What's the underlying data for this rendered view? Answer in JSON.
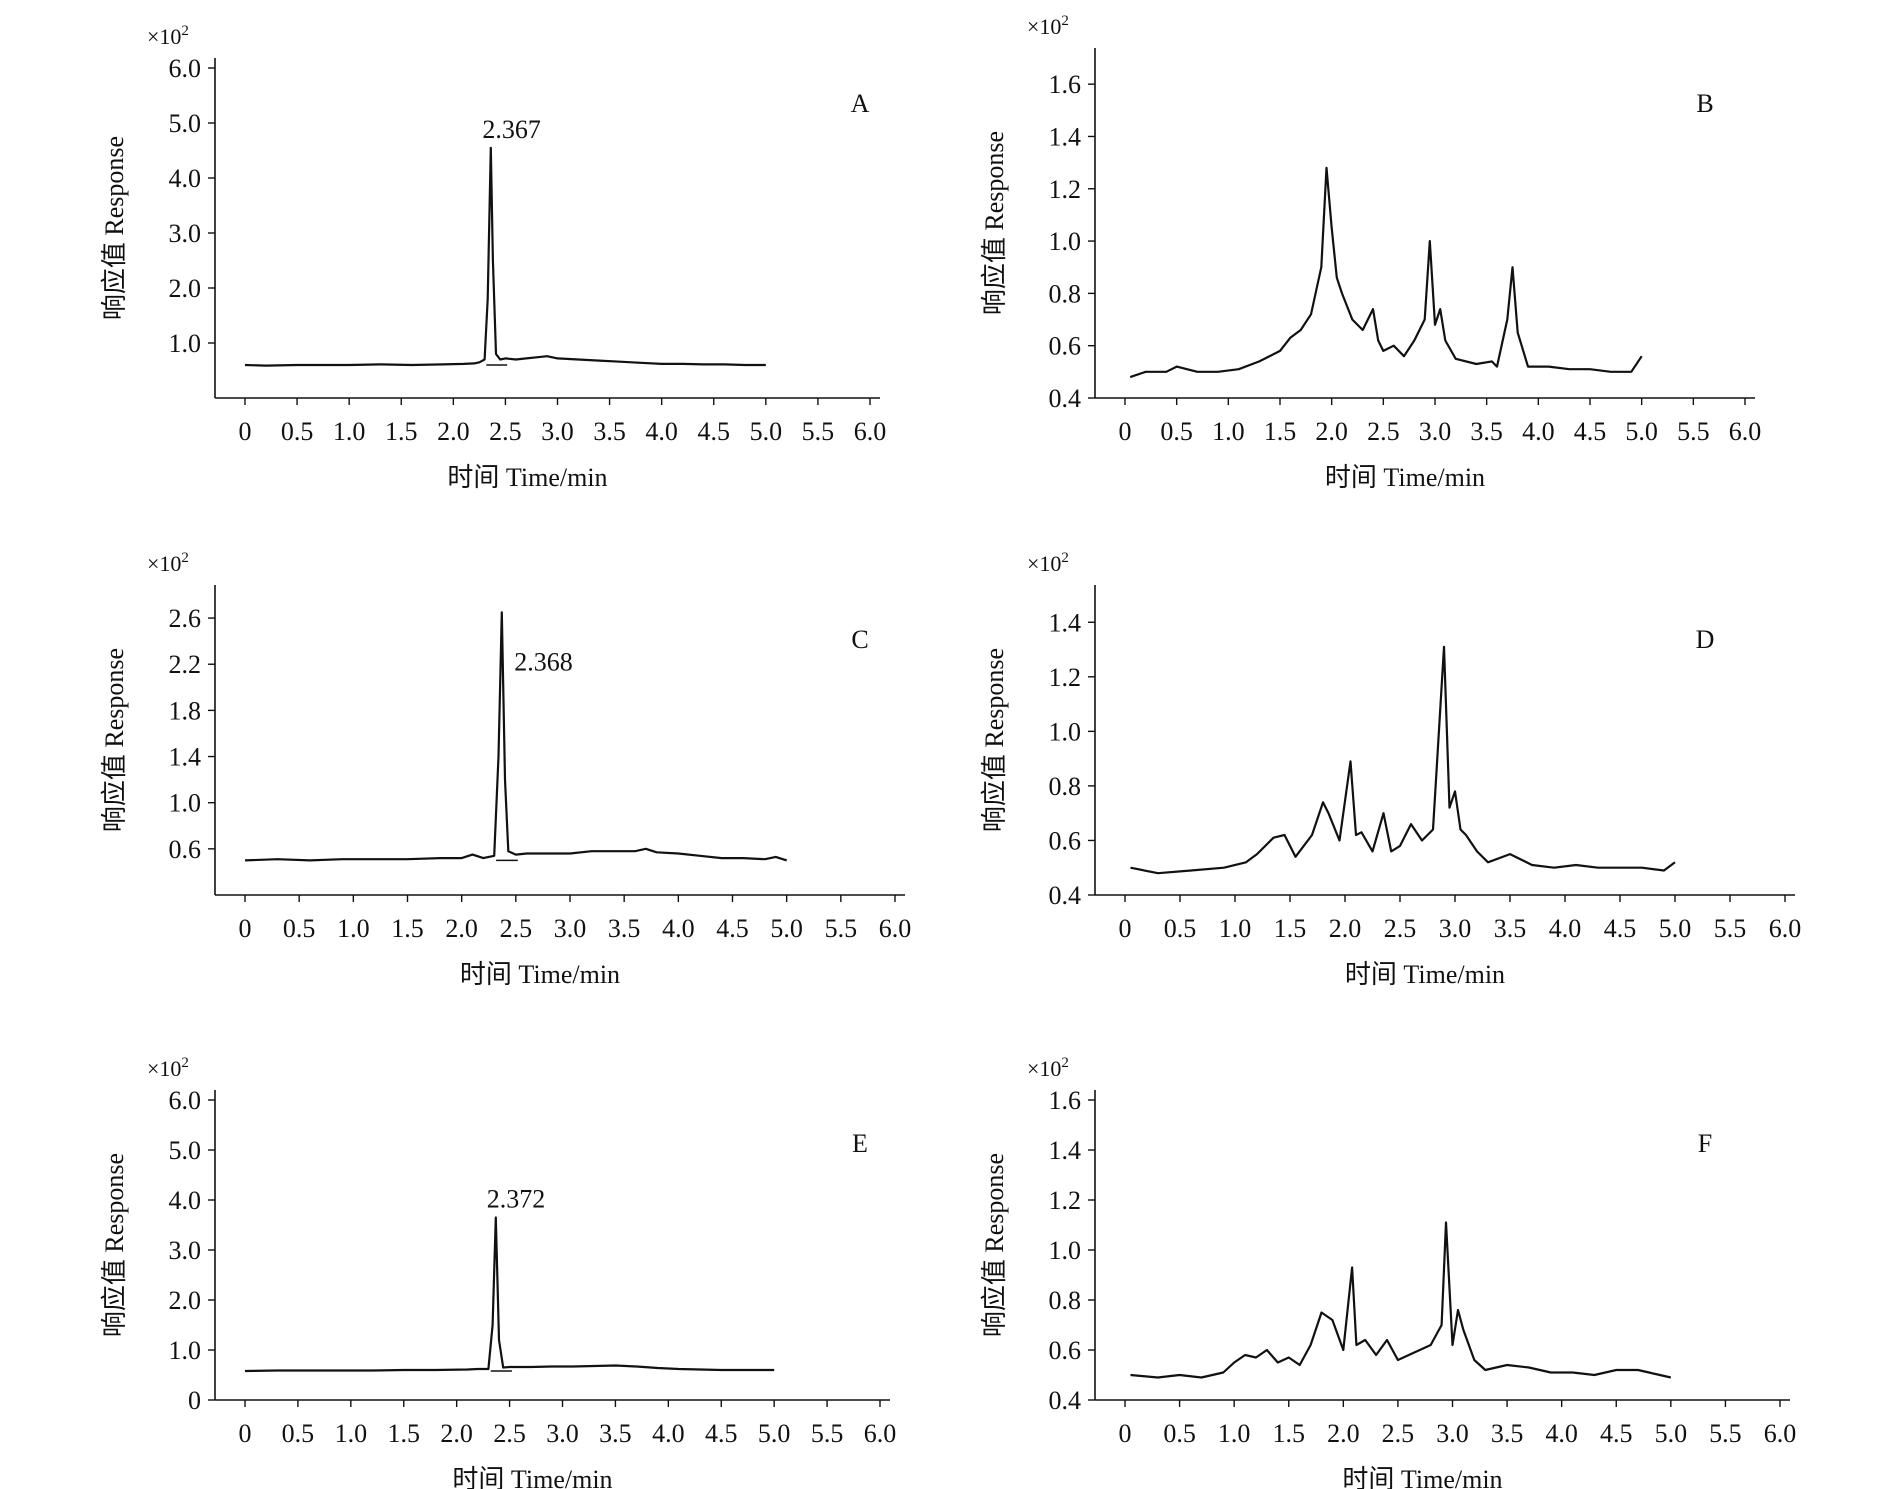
{
  "figure": {
    "chart_data": [
      {
        "panel": "A",
        "type": "line",
        "xlabel": "时间 Time/min",
        "ylabel": "响应值 Response",
        "y_multiplier": "×10",
        "y_multiplier_exp": "2",
        "xlim": [
          0,
          6.0
        ],
        "ylim": [
          0,
          6.0
        ],
        "xticks": [
          "0",
          "0.5",
          "1.0",
          "1.5",
          "2.0",
          "2.5",
          "3.0",
          "3.5",
          "4.0",
          "4.5",
          "5.0",
          "5.5",
          "6.0"
        ],
        "yticks": [
          "1.0",
          "2.0",
          "3.0",
          "4.0",
          "5.0",
          "6.0"
        ],
        "ytick_values": [
          1.0,
          2.0,
          3.0,
          4.0,
          5.0,
          6.0
        ],
        "peak_label": "2.367",
        "peak_x": 2.367,
        "peak_y": 4.55,
        "series": [
          {
            "x": [
              0,
              0.2,
              0.5,
              0.8,
              1.0,
              1.3,
              1.6,
              1.9,
              2.1,
              2.2,
              2.25,
              2.3,
              2.33,
              2.36,
              2.38,
              2.41,
              2.45,
              2.5,
              2.6,
              2.7,
              2.8,
              2.9,
              3.0,
              3.2,
              3.4,
              3.6,
              3.8,
              4.0,
              4.2,
              4.4,
              4.6,
              4.8,
              5.0
            ],
            "y": [
              0.6,
              0.59,
              0.6,
              0.6,
              0.6,
              0.61,
              0.6,
              0.61,
              0.62,
              0.63,
              0.65,
              0.7,
              1.8,
              4.55,
              2.5,
              0.8,
              0.7,
              0.72,
              0.7,
              0.72,
              0.74,
              0.76,
              0.72,
              0.7,
              0.68,
              0.66,
              0.64,
              0.62,
              0.62,
              0.61,
              0.61,
              0.6,
              0.6
            ]
          }
        ]
      },
      {
        "panel": "B",
        "type": "line",
        "xlabel": "时间 Time/min",
        "ylabel": "响应值 Response",
        "y_multiplier": "×10",
        "y_multiplier_exp": "2",
        "xlim": [
          0,
          6.0
        ],
        "ylim": [
          0.4,
          1.7
        ],
        "xticks": [
          "0",
          "0.5",
          "1.0",
          "1.5",
          "2.0",
          "2.5",
          "3.0",
          "3.5",
          "4.0",
          "4.5",
          "5.0",
          "5.5",
          "6.0"
        ],
        "yticks": [
          "0.4",
          "0.6",
          "0.8",
          "1.0",
          "1.2",
          "1.4",
          "1.6"
        ],
        "ytick_values": [
          0.4,
          0.6,
          0.8,
          1.0,
          1.2,
          1.4,
          1.6
        ],
        "series": [
          {
            "x": [
              0.05,
              0.2,
              0.4,
              0.5,
              0.7,
              0.9,
              1.1,
              1.3,
              1.5,
              1.6,
              1.7,
              1.8,
              1.9,
              1.95,
              2.0,
              2.05,
              2.1,
              2.2,
              2.3,
              2.4,
              2.45,
              2.5,
              2.6,
              2.7,
              2.8,
              2.9,
              2.95,
              3.0,
              3.05,
              3.1,
              3.2,
              3.4,
              3.55,
              3.6,
              3.7,
              3.75,
              3.8,
              3.9,
              4.1,
              4.3,
              4.5,
              4.7,
              4.9,
              5.0
            ],
            "y": [
              0.48,
              0.5,
              0.5,
              0.52,
              0.5,
              0.5,
              0.51,
              0.54,
              0.58,
              0.63,
              0.66,
              0.72,
              0.9,
              1.28,
              1.05,
              0.86,
              0.8,
              0.7,
              0.66,
              0.74,
              0.62,
              0.58,
              0.6,
              0.56,
              0.62,
              0.7,
              1.0,
              0.68,
              0.74,
              0.62,
              0.55,
              0.53,
              0.54,
              0.52,
              0.7,
              0.9,
              0.65,
              0.52,
              0.52,
              0.51,
              0.51,
              0.5,
              0.5,
              0.56
            ]
          }
        ]
      },
      {
        "panel": "C",
        "type": "line",
        "xlabel": "时间 Time/min",
        "ylabel": "响应值 Response",
        "y_multiplier": "×10",
        "y_multiplier_exp": "2",
        "xlim": [
          0,
          6.0
        ],
        "ylim": [
          0.2,
          2.8
        ],
        "xticks": [
          "0",
          "0.5",
          "1.0",
          "1.5",
          "2.0",
          "2.5",
          "3.0",
          "3.5",
          "4.0",
          "4.5",
          "5.0",
          "5.5",
          "6.0"
        ],
        "yticks": [
          "0.6",
          "1.0",
          "1.4",
          "1.8",
          "2.2",
          "2.6"
        ],
        "ytick_values": [
          0.6,
          1.0,
          1.4,
          1.8,
          2.2,
          2.6
        ],
        "peak_label": "2.368",
        "peak_x": 2.368,
        "peak_y": 2.65,
        "series": [
          {
            "x": [
              0,
              0.3,
              0.6,
              0.9,
              1.2,
              1.5,
              1.8,
              2.0,
              2.1,
              2.2,
              2.3,
              2.34,
              2.37,
              2.4,
              2.43,
              2.5,
              2.6,
              2.8,
              3.0,
              3.2,
              3.4,
              3.6,
              3.7,
              3.8,
              4.0,
              4.2,
              4.4,
              4.6,
              4.8,
              4.9,
              5.0
            ],
            "y": [
              0.5,
              0.51,
              0.5,
              0.51,
              0.51,
              0.51,
              0.52,
              0.52,
              0.55,
              0.52,
              0.54,
              1.4,
              2.65,
              1.2,
              0.58,
              0.55,
              0.56,
              0.56,
              0.56,
              0.58,
              0.58,
              0.58,
              0.6,
              0.57,
              0.56,
              0.54,
              0.52,
              0.52,
              0.51,
              0.53,
              0.5
            ]
          }
        ]
      },
      {
        "panel": "D",
        "type": "line",
        "xlabel": "时间 Time/min",
        "ylabel": "响应值 Response",
        "y_multiplier": "×10",
        "y_multiplier_exp": "2",
        "xlim": [
          0,
          6.0
        ],
        "ylim": [
          0.4,
          1.5
        ],
        "xticks": [
          "0",
          "0.5",
          "1.0",
          "1.5",
          "2.0",
          "2.5",
          "3.0",
          "3.5",
          "4.0",
          "4.5",
          "5.0",
          "5.5",
          "6.0"
        ],
        "yticks": [
          "0.4",
          "0.6",
          "0.8",
          "1.0",
          "1.2",
          "1.4"
        ],
        "ytick_values": [
          0.4,
          0.6,
          0.8,
          1.0,
          1.2,
          1.4
        ],
        "series": [
          {
            "x": [
              0.05,
              0.3,
              0.6,
              0.9,
              1.1,
              1.2,
              1.35,
              1.45,
              1.55,
              1.7,
              1.8,
              1.85,
              1.95,
              2.05,
              2.1,
              2.15,
              2.25,
              2.35,
              2.42,
              2.5,
              2.6,
              2.7,
              2.8,
              2.9,
              2.95,
              3.0,
              3.05,
              3.1,
              3.2,
              3.3,
              3.5,
              3.7,
              3.9,
              4.1,
              4.3,
              4.5,
              4.7,
              4.9,
              5.0
            ],
            "y": [
              0.5,
              0.48,
              0.49,
              0.5,
              0.52,
              0.55,
              0.61,
              0.62,
              0.54,
              0.62,
              0.74,
              0.7,
              0.6,
              0.89,
              0.62,
              0.63,
              0.56,
              0.7,
              0.56,
              0.58,
              0.66,
              0.6,
              0.64,
              1.31,
              0.72,
              0.78,
              0.64,
              0.62,
              0.56,
              0.52,
              0.55,
              0.51,
              0.5,
              0.51,
              0.5,
              0.5,
              0.5,
              0.49,
              0.52
            ]
          }
        ]
      },
      {
        "panel": "E",
        "type": "line",
        "xlabel": "时间 Time/min",
        "ylabel": "响应值 Response",
        "y_multiplier": "×10",
        "y_multiplier_exp": "2",
        "xlim": [
          0,
          6.0
        ],
        "ylim": [
          0,
          6.0
        ],
        "xticks": [
          "0",
          "0.5",
          "1.0",
          "1.5",
          "2.0",
          "2.5",
          "3.0",
          "3.5",
          "4.0",
          "4.5",
          "5.0",
          "5.5",
          "6.0"
        ],
        "yticks": [
          "0",
          "1.0",
          "2.0",
          "3.0",
          "4.0",
          "5.0",
          "6.0"
        ],
        "ytick_values": [
          0,
          1.0,
          2.0,
          3.0,
          4.0,
          5.0,
          6.0
        ],
        "peak_label": "2.372",
        "peak_x": 2.372,
        "peak_y": 3.65,
        "series": [
          {
            "x": [
              0,
              0.3,
              0.6,
              0.9,
              1.2,
              1.5,
              1.8,
              2.1,
              2.2,
              2.3,
              2.34,
              2.37,
              2.4,
              2.44,
              2.5,
              2.7,
              2.9,
              3.1,
              3.3,
              3.5,
              3.7,
              3.9,
              4.1,
              4.3,
              4.5,
              4.7,
              5.0
            ],
            "y": [
              0.58,
              0.59,
              0.59,
              0.59,
              0.59,
              0.6,
              0.6,
              0.61,
              0.62,
              0.62,
              1.5,
              3.65,
              1.2,
              0.65,
              0.66,
              0.66,
              0.67,
              0.67,
              0.68,
              0.69,
              0.67,
              0.64,
              0.62,
              0.61,
              0.6,
              0.6,
              0.6
            ]
          }
        ]
      },
      {
        "panel": "F",
        "type": "line",
        "xlabel": "时间 Time/min",
        "ylabel": "响应值 Response",
        "y_multiplier": "×10",
        "y_multiplier_exp": "2",
        "xlim": [
          0,
          6.0
        ],
        "ylim": [
          0.4,
          1.6
        ],
        "xticks": [
          "0",
          "0.5",
          "1.0",
          "1.5",
          "2.0",
          "2.5",
          "3.0",
          "3.5",
          "4.0",
          "4.5",
          "5.0",
          "5.5",
          "6.0"
        ],
        "yticks": [
          "0.4",
          "0.6",
          "0.8",
          "1.0",
          "1.2",
          "1.4",
          "1.6"
        ],
        "ytick_values": [
          0.4,
          0.6,
          0.8,
          1.0,
          1.2,
          1.4,
          1.6
        ],
        "series": [
          {
            "x": [
              0.05,
              0.3,
              0.5,
              0.7,
              0.9,
              1.0,
              1.1,
              1.2,
              1.3,
              1.4,
              1.5,
              1.6,
              1.7,
              1.8,
              1.9,
              2.0,
              2.08,
              2.12,
              2.2,
              2.3,
              2.4,
              2.5,
              2.6,
              2.7,
              2.8,
              2.9,
              2.94,
              3.0,
              3.05,
              3.1,
              3.2,
              3.3,
              3.5,
              3.7,
              3.9,
              4.1,
              4.3,
              4.5,
              4.7,
              4.9,
              5.0
            ],
            "y": [
              0.5,
              0.49,
              0.5,
              0.49,
              0.51,
              0.55,
              0.58,
              0.57,
              0.6,
              0.55,
              0.57,
              0.54,
              0.62,
              0.75,
              0.72,
              0.6,
              0.93,
              0.62,
              0.64,
              0.58,
              0.64,
              0.56,
              0.58,
              0.6,
              0.62,
              0.7,
              1.11,
              0.62,
              0.76,
              0.68,
              0.56,
              0.52,
              0.54,
              0.53,
              0.51,
              0.51,
              0.5,
              0.52,
              0.52,
              0.5,
              0.49
            ]
          }
        ]
      }
    ]
  }
}
